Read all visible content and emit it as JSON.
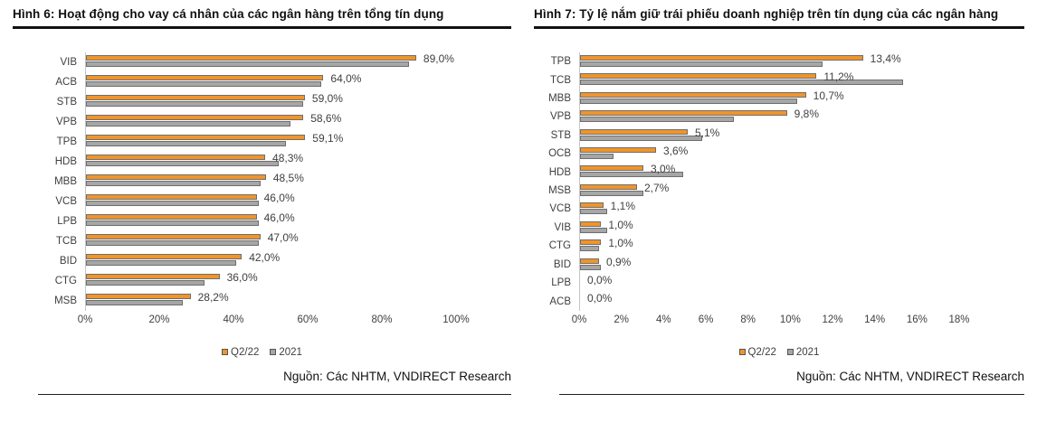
{
  "chart_data": [
    {
      "type": "bar",
      "orientation": "horizontal",
      "title": "Hình 6: Hoạt động cho vay cá nhân của các ngân hàng trên tổng tín dụng",
      "categories": [
        "VIB",
        "ACB",
        "STB",
        "VPB",
        "TPB",
        "HDB",
        "MBB",
        "VCB",
        "LPB",
        "TCB",
        "BID",
        "CTG",
        "MSB"
      ],
      "series": [
        {
          "name": "Q2/22",
          "color": "#F0952B",
          "values": [
            89.0,
            64.0,
            59.0,
            58.6,
            59.1,
            48.3,
            48.5,
            46.0,
            46.0,
            47.0,
            42.0,
            36.0,
            28.2
          ]
        },
        {
          "name": "2021",
          "color": "#A6A6A6",
          "values": [
            87.0,
            63.5,
            58.5,
            55.0,
            54.0,
            52.0,
            47.0,
            46.5,
            46.5,
            46.5,
            40.5,
            32.0,
            26.0
          ]
        }
      ],
      "data_labels": [
        "89,0%",
        "64,0%",
        "59,0%",
        "58,6%",
        "59,1%",
        "48,3%",
        "48,5%",
        "46,0%",
        "46,0%",
        "47,0%",
        "42,0%",
        "36,0%",
        "28,2%"
      ],
      "x_ticks": [
        "0%",
        "20%",
        "40%",
        "60%",
        "80%",
        "100%"
      ],
      "x_max": 100,
      "legend_position": "bottom-center",
      "grid": false,
      "source": "Nguồn: Các NHTM, VNDIRECT Research"
    },
    {
      "type": "bar",
      "orientation": "horizontal",
      "title": "Hình 7: Tỷ lệ nắm giữ trái phiếu doanh nghiệp trên tín dụng của các ngân hàng",
      "categories": [
        "TPB",
        "TCB",
        "MBB",
        "VPB",
        "STB",
        "OCB",
        "HDB",
        "MSB",
        "VCB",
        "VIB",
        "CTG",
        "BID",
        "LPB",
        "ACB"
      ],
      "series": [
        {
          "name": "Q2/22",
          "color": "#F0952B",
          "values": [
            13.4,
            11.2,
            10.7,
            9.8,
            5.1,
            3.6,
            3.0,
            2.7,
            1.1,
            1.0,
            1.0,
            0.9,
            0.0,
            0.0
          ]
        },
        {
          "name": "2021",
          "color": "#A6A6A6",
          "values": [
            11.5,
            15.3,
            10.3,
            7.3,
            5.8,
            1.6,
            4.9,
            3.0,
            1.3,
            1.3,
            0.9,
            1.0,
            0.0,
            0.0
          ]
        }
      ],
      "data_labels": [
        "13,4%",
        "11,2%",
        "10,7%",
        "9,8%",
        "5,1%",
        "3,6%",
        "3,0%",
        "2,7%",
        "1,1%",
        "1,0%",
        "1,0%",
        "0,9%",
        "0,0%",
        "0,0%"
      ],
      "x_ticks": [
        "0%",
        "2%",
        "4%",
        "6%",
        "8%",
        "10%",
        "12%",
        "14%",
        "16%",
        "18%"
      ],
      "x_max": 18,
      "legend_position": "bottom-center",
      "grid": false,
      "source": "Nguồn: Các NHTM, VNDIRECT Research"
    }
  ]
}
